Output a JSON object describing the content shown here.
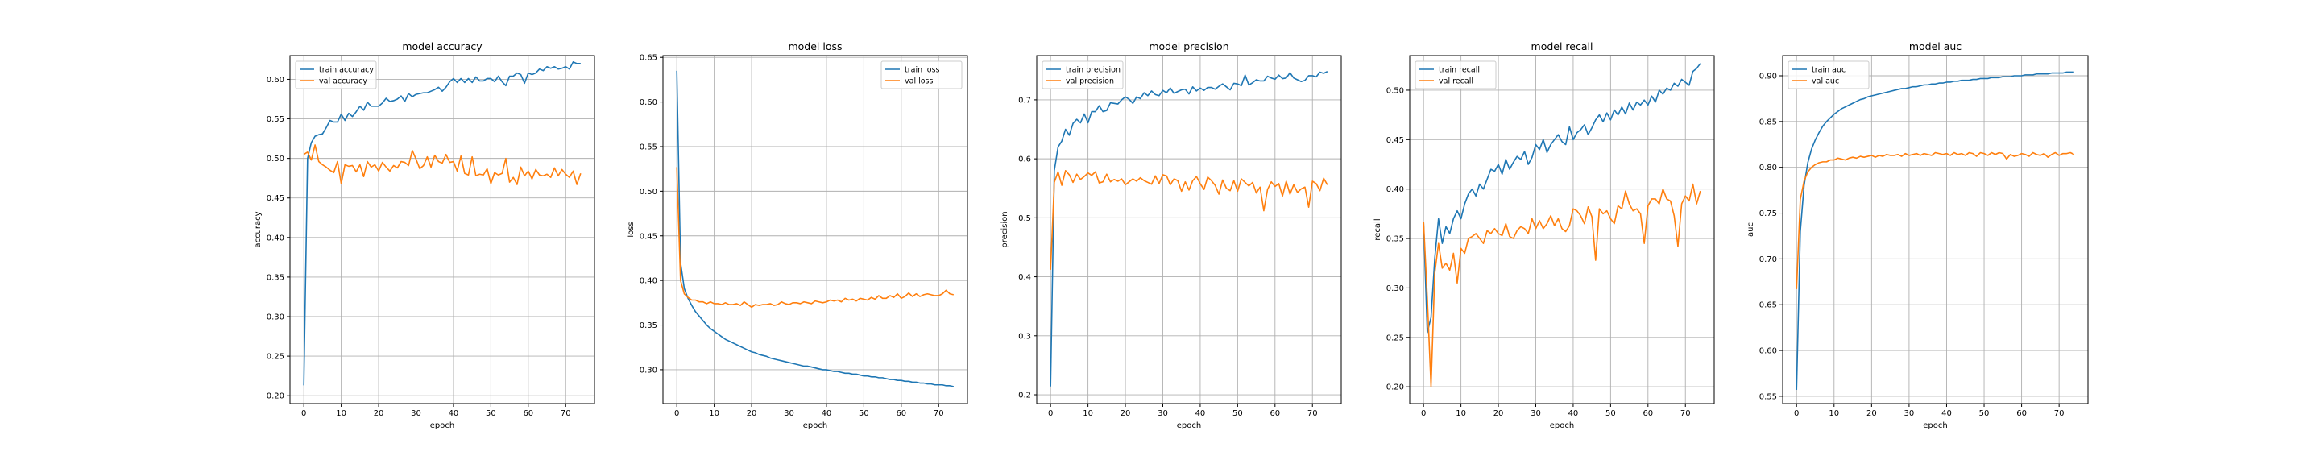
{
  "figure": {
    "background": "#ffffff"
  },
  "colors": {
    "train": "#1f77b4",
    "val": "#ff7f0e",
    "grid": "#b0b0b0",
    "axis": "#000000"
  },
  "chart_data": [
    {
      "type": "line",
      "title": "model accuracy",
      "xlabel": "epoch",
      "ylabel": "accuracy",
      "xlim": [
        -3.7,
        77.7
      ],
      "ylim": [
        0.19,
        0.63
      ],
      "xticks": [
        0,
        10,
        20,
        30,
        40,
        50,
        60,
        70
      ],
      "yticks": [
        0.2,
        0.25,
        0.3,
        0.35,
        0.4,
        0.45,
        0.5,
        0.55,
        0.6
      ],
      "ytick_format": 2,
      "grid": true,
      "legend": "upper left",
      "series": [
        {
          "name": "train accuracy",
          "color": "#1f77b4",
          "values": [
            0.213,
            0.5,
            0.52,
            0.528,
            0.53,
            0.531,
            0.539,
            0.548,
            0.546,
            0.546,
            0.556,
            0.548,
            0.557,
            0.553,
            0.559,
            0.566,
            0.561,
            0.571,
            0.566,
            0.566,
            0.566,
            0.57,
            0.576,
            0.572,
            0.573,
            0.575,
            0.579,
            0.572,
            0.582,
            0.578,
            0.581,
            0.582,
            0.583,
            0.583,
            0.585,
            0.587,
            0.59,
            0.585,
            0.59,
            0.597,
            0.601,
            0.596,
            0.601,
            0.596,
            0.601,
            0.596,
            0.603,
            0.598,
            0.598,
            0.601,
            0.601,
            0.597,
            0.604,
            0.597,
            0.592,
            0.604,
            0.604,
            0.608,
            0.606,
            0.595,
            0.608,
            0.606,
            0.608,
            0.613,
            0.611,
            0.616,
            0.614,
            0.616,
            0.613,
            0.614,
            0.616,
            0.613,
            0.622,
            0.62,
            0.62
          ]
        },
        {
          "name": "val accuracy",
          "color": "#ff7f0e",
          "values": [
            0.505,
            0.508,
            0.498,
            0.517,
            0.496,
            0.492,
            0.489,
            0.485,
            0.482,
            0.496,
            0.468,
            0.492,
            0.49,
            0.491,
            0.483,
            0.492,
            0.477,
            0.496,
            0.489,
            0.492,
            0.484,
            0.495,
            0.489,
            0.484,
            0.491,
            0.488,
            0.496,
            0.495,
            0.491,
            0.51,
            0.499,
            0.487,
            0.491,
            0.502,
            0.489,
            0.504,
            0.496,
            0.494,
            0.505,
            0.495,
            0.496,
            0.484,
            0.503,
            0.481,
            0.479,
            0.502,
            0.478,
            0.48,
            0.479,
            0.487,
            0.468,
            0.482,
            0.479,
            0.481,
            0.5,
            0.47,
            0.476,
            0.467,
            0.489,
            0.478,
            0.484,
            0.474,
            0.486,
            0.479,
            0.478,
            0.48,
            0.476,
            0.488,
            0.478,
            0.486,
            0.48,
            0.476,
            0.484,
            0.467,
            0.481
          ]
        }
      ]
    },
    {
      "type": "line",
      "title": "model loss",
      "xlabel": "epoch",
      "ylabel": "loss",
      "xlim": [
        -3.7,
        77.7
      ],
      "ylim": [
        0.262,
        0.652
      ],
      "xticks": [
        0,
        10,
        20,
        30,
        40,
        50,
        60,
        70
      ],
      "yticks": [
        0.3,
        0.35,
        0.4,
        0.45,
        0.5,
        0.55,
        0.6,
        0.65
      ],
      "ytick_format": 2,
      "grid": true,
      "legend": "upper right",
      "series": [
        {
          "name": "train loss",
          "color": "#1f77b4",
          "values": [
            0.635,
            0.42,
            0.391,
            0.38,
            0.372,
            0.365,
            0.36,
            0.355,
            0.35,
            0.346,
            0.343,
            0.34,
            0.337,
            0.334,
            0.332,
            0.33,
            0.328,
            0.326,
            0.324,
            0.322,
            0.32,
            0.319,
            0.317,
            0.316,
            0.315,
            0.313,
            0.312,
            0.311,
            0.31,
            0.309,
            0.308,
            0.307,
            0.306,
            0.305,
            0.304,
            0.304,
            0.303,
            0.302,
            0.301,
            0.3,
            0.3,
            0.299,
            0.298,
            0.298,
            0.297,
            0.296,
            0.296,
            0.295,
            0.295,
            0.294,
            0.293,
            0.293,
            0.292,
            0.292,
            0.291,
            0.291,
            0.29,
            0.289,
            0.289,
            0.288,
            0.288,
            0.287,
            0.287,
            0.286,
            0.286,
            0.285,
            0.285,
            0.284,
            0.284,
            0.283,
            0.283,
            0.283,
            0.282,
            0.282,
            0.281
          ]
        },
        {
          "name": "val loss",
          "color": "#ff7f0e",
          "values": [
            0.527,
            0.4,
            0.385,
            0.381,
            0.378,
            0.378,
            0.376,
            0.376,
            0.374,
            0.376,
            0.374,
            0.374,
            0.373,
            0.375,
            0.373,
            0.373,
            0.374,
            0.372,
            0.376,
            0.373,
            0.37,
            0.373,
            0.372,
            0.373,
            0.373,
            0.374,
            0.372,
            0.373,
            0.376,
            0.374,
            0.373,
            0.375,
            0.375,
            0.374,
            0.376,
            0.375,
            0.374,
            0.377,
            0.376,
            0.375,
            0.376,
            0.378,
            0.377,
            0.378,
            0.376,
            0.38,
            0.378,
            0.379,
            0.377,
            0.38,
            0.379,
            0.378,
            0.381,
            0.379,
            0.383,
            0.38,
            0.38,
            0.383,
            0.381,
            0.385,
            0.38,
            0.382,
            0.386,
            0.382,
            0.385,
            0.382,
            0.384,
            0.385,
            0.384,
            0.383,
            0.383,
            0.385,
            0.389,
            0.385,
            0.384
          ]
        }
      ]
    },
    {
      "type": "line",
      "title": "model precision",
      "xlabel": "epoch",
      "ylabel": "precision",
      "xlim": [
        -3.7,
        77.7
      ],
      "ylim": [
        0.185,
        0.775
      ],
      "xticks": [
        0,
        10,
        20,
        30,
        40,
        50,
        60,
        70
      ],
      "yticks": [
        0.2,
        0.3,
        0.4,
        0.5,
        0.6,
        0.7
      ],
      "ytick_format": 1,
      "grid": true,
      "legend": "upper left",
      "series": [
        {
          "name": "train precision",
          "color": "#1f77b4",
          "values": [
            0.214,
            0.58,
            0.62,
            0.63,
            0.65,
            0.64,
            0.66,
            0.667,
            0.661,
            0.676,
            0.661,
            0.68,
            0.68,
            0.69,
            0.68,
            0.682,
            0.695,
            0.694,
            0.693,
            0.7,
            0.705,
            0.701,
            0.694,
            0.705,
            0.702,
            0.712,
            0.707,
            0.715,
            0.709,
            0.707,
            0.716,
            0.712,
            0.72,
            0.711,
            0.714,
            0.717,
            0.718,
            0.71,
            0.722,
            0.715,
            0.72,
            0.716,
            0.721,
            0.721,
            0.718,
            0.723,
            0.727,
            0.722,
            0.717,
            0.728,
            0.727,
            0.724,
            0.742,
            0.725,
            0.729,
            0.734,
            0.732,
            0.732,
            0.74,
            0.737,
            0.735,
            0.742,
            0.736,
            0.737,
            0.746,
            0.737,
            0.734,
            0.731,
            0.733,
            0.741,
            0.741,
            0.739,
            0.747,
            0.745,
            0.748
          ]
        },
        {
          "name": "val precision",
          "color": "#ff7f0e",
          "values": [
            0.412,
            0.56,
            0.578,
            0.555,
            0.58,
            0.573,
            0.56,
            0.574,
            0.565,
            0.57,
            0.576,
            0.572,
            0.578,
            0.559,
            0.561,
            0.574,
            0.561,
            0.565,
            0.562,
            0.566,
            0.556,
            0.561,
            0.566,
            0.562,
            0.568,
            0.563,
            0.56,
            0.557,
            0.571,
            0.558,
            0.573,
            0.571,
            0.556,
            0.566,
            0.563,
            0.545,
            0.561,
            0.547,
            0.563,
            0.57,
            0.558,
            0.548,
            0.569,
            0.563,
            0.555,
            0.54,
            0.564,
            0.55,
            0.546,
            0.563,
            0.545,
            0.566,
            0.56,
            0.554,
            0.56,
            0.542,
            0.552,
            0.512,
            0.548,
            0.561,
            0.553,
            0.558,
            0.537,
            0.562,
            0.54,
            0.556,
            0.543,
            0.549,
            0.552,
            0.518,
            0.562,
            0.558,
            0.546,
            0.567,
            0.556
          ]
        }
      ]
    },
    {
      "type": "line",
      "title": "model recall",
      "xlabel": "epoch",
      "ylabel": "recall",
      "xlim": [
        -3.7,
        77.7
      ],
      "ylim": [
        0.183,
        0.535
      ],
      "xticks": [
        0,
        10,
        20,
        30,
        40,
        50,
        60,
        70
      ],
      "yticks": [
        0.2,
        0.25,
        0.3,
        0.35,
        0.4,
        0.45,
        0.5
      ],
      "ytick_format": 2,
      "grid": true,
      "legend": "upper left",
      "series": [
        {
          "name": "train recall",
          "color": "#1f77b4",
          "values": [
            0.367,
            0.255,
            0.27,
            0.33,
            0.37,
            0.345,
            0.362,
            0.355,
            0.37,
            0.378,
            0.37,
            0.385,
            0.395,
            0.4,
            0.393,
            0.405,
            0.4,
            0.41,
            0.42,
            0.418,
            0.425,
            0.415,
            0.43,
            0.42,
            0.427,
            0.433,
            0.43,
            0.438,
            0.425,
            0.432,
            0.445,
            0.44,
            0.45,
            0.437,
            0.445,
            0.45,
            0.455,
            0.448,
            0.445,
            0.463,
            0.45,
            0.457,
            0.46,
            0.465,
            0.455,
            0.462,
            0.47,
            0.475,
            0.468,
            0.477,
            0.47,
            0.48,
            0.475,
            0.483,
            0.476,
            0.487,
            0.48,
            0.488,
            0.485,
            0.49,
            0.485,
            0.494,
            0.488,
            0.5,
            0.496,
            0.502,
            0.5,
            0.507,
            0.504,
            0.511,
            0.508,
            0.505,
            0.519,
            0.522,
            0.527
          ]
        },
        {
          "name": "val recall",
          "color": "#ff7f0e",
          "values": [
            0.367,
            0.29,
            0.2,
            0.315,
            0.345,
            0.32,
            0.325,
            0.318,
            0.335,
            0.305,
            0.34,
            0.335,
            0.35,
            0.352,
            0.355,
            0.35,
            0.345,
            0.358,
            0.355,
            0.36,
            0.355,
            0.353,
            0.365,
            0.352,
            0.35,
            0.358,
            0.362,
            0.36,
            0.355,
            0.37,
            0.36,
            0.368,
            0.36,
            0.365,
            0.373,
            0.363,
            0.37,
            0.36,
            0.357,
            0.363,
            0.38,
            0.378,
            0.373,
            0.365,
            0.382,
            0.372,
            0.328,
            0.38,
            0.375,
            0.378,
            0.37,
            0.365,
            0.383,
            0.38,
            0.398,
            0.385,
            0.378,
            0.38,
            0.375,
            0.345,
            0.383,
            0.39,
            0.39,
            0.385,
            0.4,
            0.39,
            0.388,
            0.373,
            0.342,
            0.385,
            0.393,
            0.388,
            0.405,
            0.385,
            0.398
          ]
        }
      ]
    },
    {
      "type": "line",
      "title": "model auc",
      "xlabel": "epoch",
      "ylabel": "auc",
      "xlim": [
        -3.7,
        77.7
      ],
      "ylim": [
        0.542,
        0.922
      ],
      "xticks": [
        0,
        10,
        20,
        30,
        40,
        50,
        60,
        70
      ],
      "yticks": [
        0.55,
        0.6,
        0.65,
        0.7,
        0.75,
        0.8,
        0.85,
        0.9
      ],
      "ytick_format": 2,
      "grid": true,
      "legend": "upper left",
      "series": [
        {
          "name": "train auc",
          "color": "#1f77b4",
          "values": [
            0.557,
            0.73,
            0.78,
            0.805,
            0.82,
            0.83,
            0.838,
            0.845,
            0.85,
            0.854,
            0.858,
            0.861,
            0.864,
            0.866,
            0.868,
            0.87,
            0.872,
            0.874,
            0.875,
            0.877,
            0.878,
            0.879,
            0.88,
            0.881,
            0.882,
            0.883,
            0.884,
            0.885,
            0.886,
            0.886,
            0.887,
            0.888,
            0.888,
            0.889,
            0.89,
            0.89,
            0.891,
            0.891,
            0.892,
            0.892,
            0.893,
            0.893,
            0.894,
            0.894,
            0.895,
            0.895,
            0.895,
            0.896,
            0.896,
            0.897,
            0.897,
            0.897,
            0.898,
            0.898,
            0.898,
            0.899,
            0.899,
            0.899,
            0.9,
            0.9,
            0.9,
            0.901,
            0.901,
            0.901,
            0.902,
            0.902,
            0.902,
            0.902,
            0.903,
            0.903,
            0.903,
            0.903,
            0.904,
            0.904,
            0.904
          ]
        },
        {
          "name": "val auc",
          "color": "#ff7f0e",
          "values": [
            0.667,
            0.765,
            0.785,
            0.795,
            0.8,
            0.803,
            0.805,
            0.806,
            0.806,
            0.808,
            0.808,
            0.81,
            0.809,
            0.808,
            0.81,
            0.811,
            0.81,
            0.812,
            0.811,
            0.812,
            0.813,
            0.811,
            0.813,
            0.812,
            0.814,
            0.813,
            0.813,
            0.814,
            0.812,
            0.815,
            0.813,
            0.814,
            0.815,
            0.813,
            0.815,
            0.814,
            0.813,
            0.816,
            0.815,
            0.814,
            0.815,
            0.813,
            0.816,
            0.814,
            0.815,
            0.813,
            0.816,
            0.815,
            0.812,
            0.816,
            0.815,
            0.813,
            0.816,
            0.814,
            0.816,
            0.815,
            0.809,
            0.814,
            0.812,
            0.813,
            0.815,
            0.814,
            0.812,
            0.816,
            0.814,
            0.813,
            0.815,
            0.811,
            0.814,
            0.816,
            0.813,
            0.815,
            0.815,
            0.816,
            0.814
          ]
        }
      ]
    }
  ]
}
